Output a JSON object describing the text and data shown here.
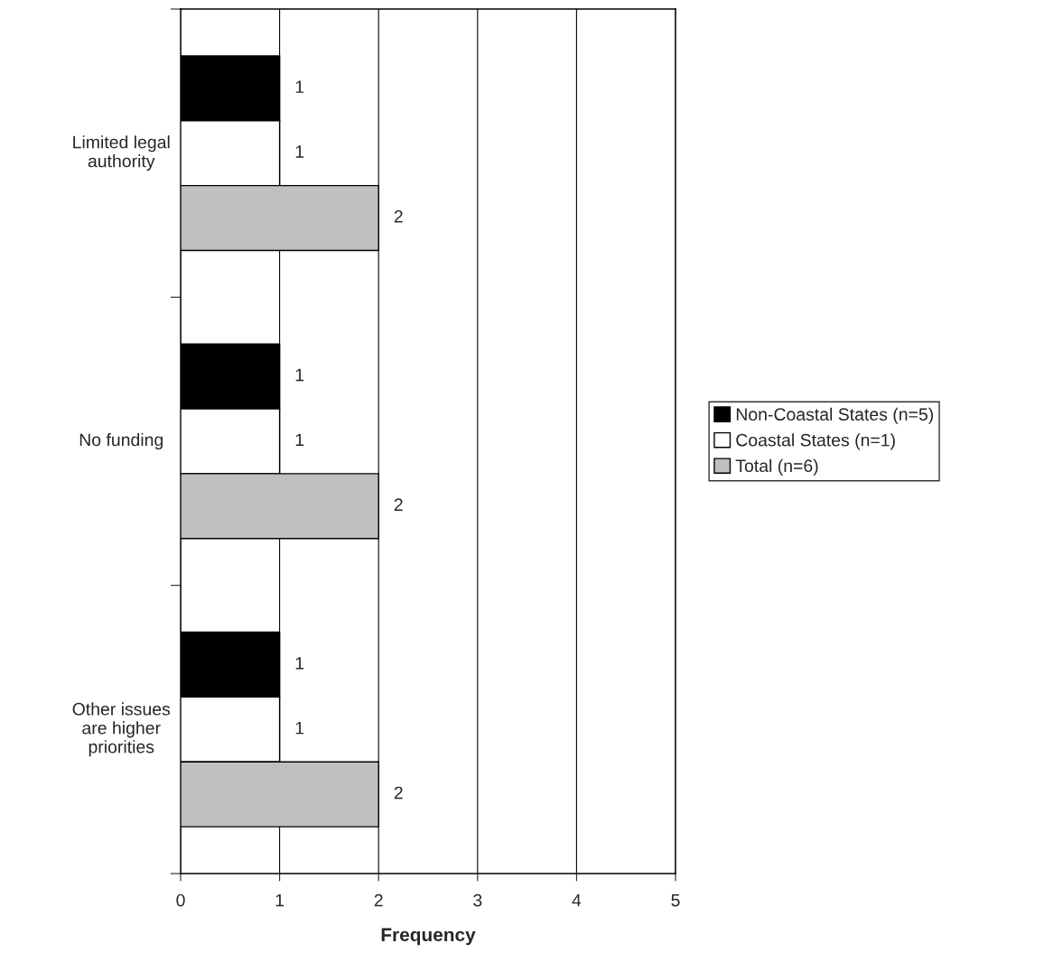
{
  "chart_data": {
    "type": "bar",
    "orientation": "horizontal",
    "xlabel": "Frequency",
    "categories": [
      "Limited legal\nauthority",
      "No funding",
      "Other issues\nare higher\npriorities"
    ],
    "series": [
      {
        "name": "Non-Coastal States (n=5)",
        "color": "#000000",
        "values": [
          1,
          1,
          1
        ]
      },
      {
        "name": "Coastal States (n=1)",
        "color": "#ffffff",
        "values": [
          1,
          1,
          1
        ]
      },
      {
        "name": "Total (n=6)",
        "color": "#c0c0c0",
        "values": [
          2,
          2,
          2
        ]
      }
    ],
    "xlim": [
      0,
      5
    ],
    "xticks": [
      0,
      1,
      2,
      3,
      4,
      5
    ],
    "grid": "x",
    "legend": "right",
    "data_labels": true
  }
}
